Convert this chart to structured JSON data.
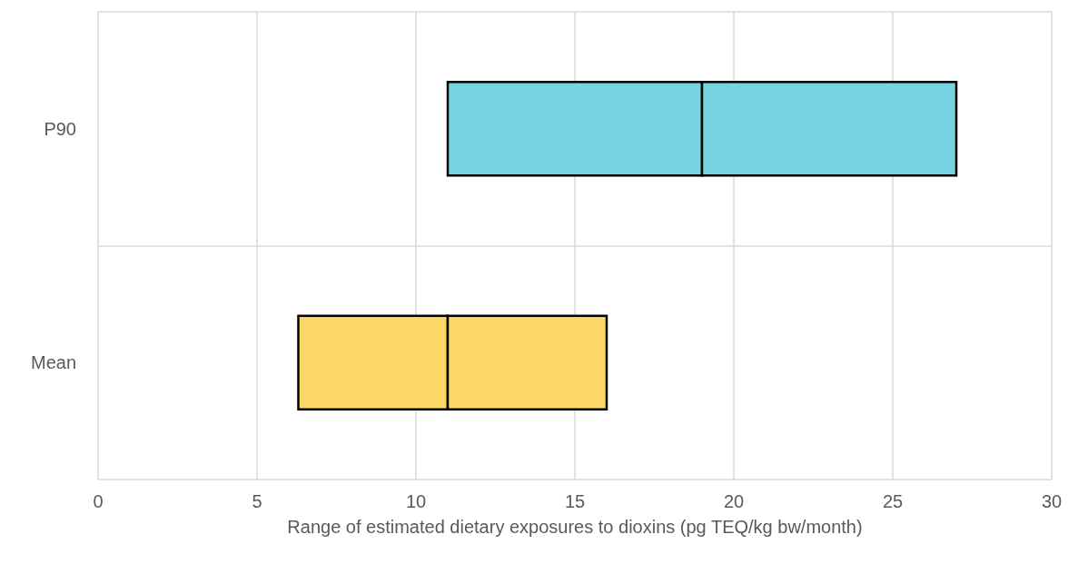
{
  "chart_data": {
    "type": "bar",
    "orientation": "horizontal",
    "xlabel": "Range of estimated dietary exposures to dioxins (pg TEQ/kg bw/month)",
    "categories": [
      "P90",
      "Mean"
    ],
    "series": [
      {
        "colors": [
          "#78d3e1",
          "#fdd766"
        ],
        "base": [
          11,
          6.3
        ],
        "values": [
          8,
          4.7
        ]
      },
      {
        "colors": [
          "#78d3e1",
          "#fdd766"
        ],
        "base": [
          19,
          11
        ],
        "values": [
          8,
          5
        ]
      }
    ],
    "xlim": [
      0,
      30
    ],
    "xticks": [
      0,
      5,
      10,
      15,
      20,
      25,
      30
    ],
    "grid": true
  }
}
